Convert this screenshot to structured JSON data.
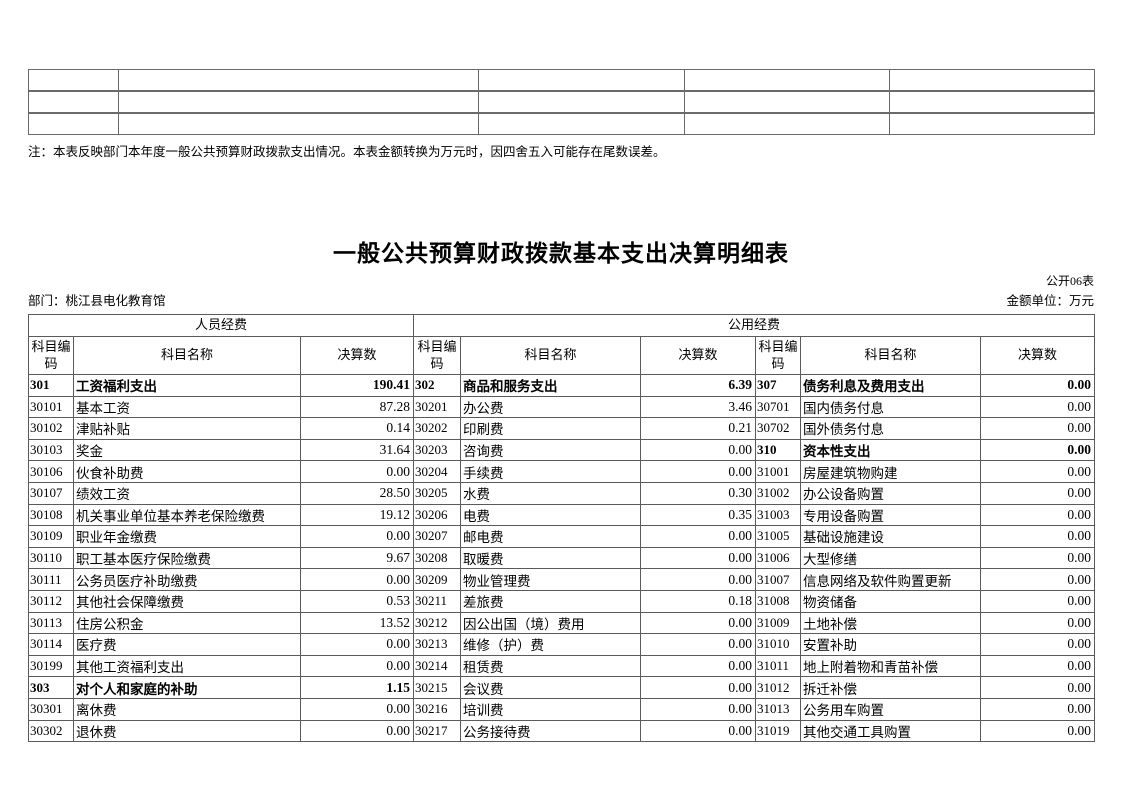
{
  "note": "注：本表反映部门本年度一般公共预算财政拨款支出情况。本表金额转换为万元时，因四舍五入可能存在尾数误差。",
  "title": "一般公共预算财政拨款基本支出决算明细表",
  "meta": {
    "table_code": "公开06表",
    "department": "部门：桃江县电化教育馆",
    "unit": "金额单位：万元"
  },
  "header_table": {
    "rows": 3,
    "columns": 5
  },
  "main_table": {
    "group_headers": [
      "人员经费",
      "公用经费"
    ],
    "column_headers": [
      "科目编码",
      "科目名称",
      "决算数"
    ],
    "rows": [
      {
        "groups": [
          {
            "code": "301",
            "name": "工资福利支出",
            "value": "190.41",
            "bold": true
          },
          {
            "code": "302",
            "name": "商品和服务支出",
            "value": "6.39",
            "bold": true
          },
          {
            "code": "307",
            "name": "债务利息及费用支出",
            "value": "0.00",
            "bold": true
          }
        ]
      },
      {
        "groups": [
          {
            "code": "30101",
            "name": "基本工资",
            "value": "87.28",
            "bold": false
          },
          {
            "code": "30201",
            "name": "办公费",
            "value": "3.46",
            "bold": false
          },
          {
            "code": "30701",
            "name": "国内债务付息",
            "value": "0.00",
            "bold": false
          }
        ]
      },
      {
        "groups": [
          {
            "code": "30102",
            "name": "津贴补贴",
            "value": "0.14",
            "bold": false
          },
          {
            "code": "30202",
            "name": "印刷费",
            "value": "0.21",
            "bold": false
          },
          {
            "code": "30702",
            "name": "国外债务付息",
            "value": "0.00",
            "bold": false
          }
        ]
      },
      {
        "groups": [
          {
            "code": "30103",
            "name": "奖金",
            "value": "31.64",
            "bold": false
          },
          {
            "code": "30203",
            "name": "咨询费",
            "value": "0.00",
            "bold": false
          },
          {
            "code": "310",
            "name": "资本性支出",
            "value": "0.00",
            "bold": true
          }
        ]
      },
      {
        "groups": [
          {
            "code": "30106",
            "name": "伙食补助费",
            "value": "0.00",
            "bold": false
          },
          {
            "code": "30204",
            "name": "手续费",
            "value": "0.00",
            "bold": false
          },
          {
            "code": "31001",
            "name": "房屋建筑物购建",
            "value": "0.00",
            "bold": false
          }
        ]
      },
      {
        "groups": [
          {
            "code": "30107",
            "name": "绩效工资",
            "value": "28.50",
            "bold": false
          },
          {
            "code": "30205",
            "name": "水费",
            "value": "0.30",
            "bold": false
          },
          {
            "code": "31002",
            "name": "办公设备购置",
            "value": "0.00",
            "bold": false
          }
        ]
      },
      {
        "groups": [
          {
            "code": "30108",
            "name": "机关事业单位基本养老保险缴费",
            "value": "19.12",
            "bold": false
          },
          {
            "code": "30206",
            "name": "电费",
            "value": "0.35",
            "bold": false
          },
          {
            "code": "31003",
            "name": "专用设备购置",
            "value": "0.00",
            "bold": false
          }
        ]
      },
      {
        "groups": [
          {
            "code": "30109",
            "name": "职业年金缴费",
            "value": "0.00",
            "bold": false
          },
          {
            "code": "30207",
            "name": "邮电费",
            "value": "0.00",
            "bold": false
          },
          {
            "code": "31005",
            "name": "基础设施建设",
            "value": "0.00",
            "bold": false
          }
        ]
      },
      {
        "groups": [
          {
            "code": "30110",
            "name": "职工基本医疗保险缴费",
            "value": "9.67",
            "bold": false
          },
          {
            "code": "30208",
            "name": "取暖费",
            "value": "0.00",
            "bold": false
          },
          {
            "code": "31006",
            "name": "大型修缮",
            "value": "0.00",
            "bold": false
          }
        ]
      },
      {
        "groups": [
          {
            "code": "30111",
            "name": "公务员医疗补助缴费",
            "value": "0.00",
            "bold": false
          },
          {
            "code": "30209",
            "name": "物业管理费",
            "value": "0.00",
            "bold": false
          },
          {
            "code": "31007",
            "name": "信息网络及软件购置更新",
            "value": "0.00",
            "bold": false
          }
        ]
      },
      {
        "groups": [
          {
            "code": "30112",
            "name": "其他社会保障缴费",
            "value": "0.53",
            "bold": false
          },
          {
            "code": "30211",
            "name": "差旅费",
            "value": "0.18",
            "bold": false
          },
          {
            "code": "31008",
            "name": "物资储备",
            "value": "0.00",
            "bold": false
          }
        ]
      },
      {
        "groups": [
          {
            "code": "30113",
            "name": "住房公积金",
            "value": "13.52",
            "bold": false
          },
          {
            "code": "30212",
            "name": "因公出国（境）费用",
            "value": "0.00",
            "bold": false
          },
          {
            "code": "31009",
            "name": "土地补偿",
            "value": "0.00",
            "bold": false
          }
        ]
      },
      {
        "groups": [
          {
            "code": "30114",
            "name": "医疗费",
            "value": "0.00",
            "bold": false
          },
          {
            "code": "30213",
            "name": "维修（护）费",
            "value": "0.00",
            "bold": false
          },
          {
            "code": "31010",
            "name": "安置补助",
            "value": "0.00",
            "bold": false
          }
        ]
      },
      {
        "groups": [
          {
            "code": "30199",
            "name": "其他工资福利支出",
            "value": "0.00",
            "bold": false
          },
          {
            "code": "30214",
            "name": "租赁费",
            "value": "0.00",
            "bold": false
          },
          {
            "code": "31011",
            "name": "地上附着物和青苗补偿",
            "value": "0.00",
            "bold": false
          }
        ]
      },
      {
        "groups": [
          {
            "code": "303",
            "name": "对个人和家庭的补助",
            "value": "1.15",
            "bold": true
          },
          {
            "code": "30215",
            "name": "会议费",
            "value": "0.00",
            "bold": false
          },
          {
            "code": "31012",
            "name": "拆迁补偿",
            "value": "0.00",
            "bold": false
          }
        ]
      },
      {
        "groups": [
          {
            "code": "30301",
            "name": "离休费",
            "value": "0.00",
            "bold": false
          },
          {
            "code": "30216",
            "name": "培训费",
            "value": "0.00",
            "bold": false
          },
          {
            "code": "31013",
            "name": "公务用车购置",
            "value": "0.00",
            "bold": false
          }
        ]
      },
      {
        "groups": [
          {
            "code": "30302",
            "name": "退休费",
            "value": "0.00",
            "bold": false
          },
          {
            "code": "30217",
            "name": "公务接待费",
            "value": "0.00",
            "bold": false
          },
          {
            "code": "31019",
            "name": "其他交通工具购置",
            "value": "0.00",
            "bold": false
          }
        ]
      }
    ]
  }
}
